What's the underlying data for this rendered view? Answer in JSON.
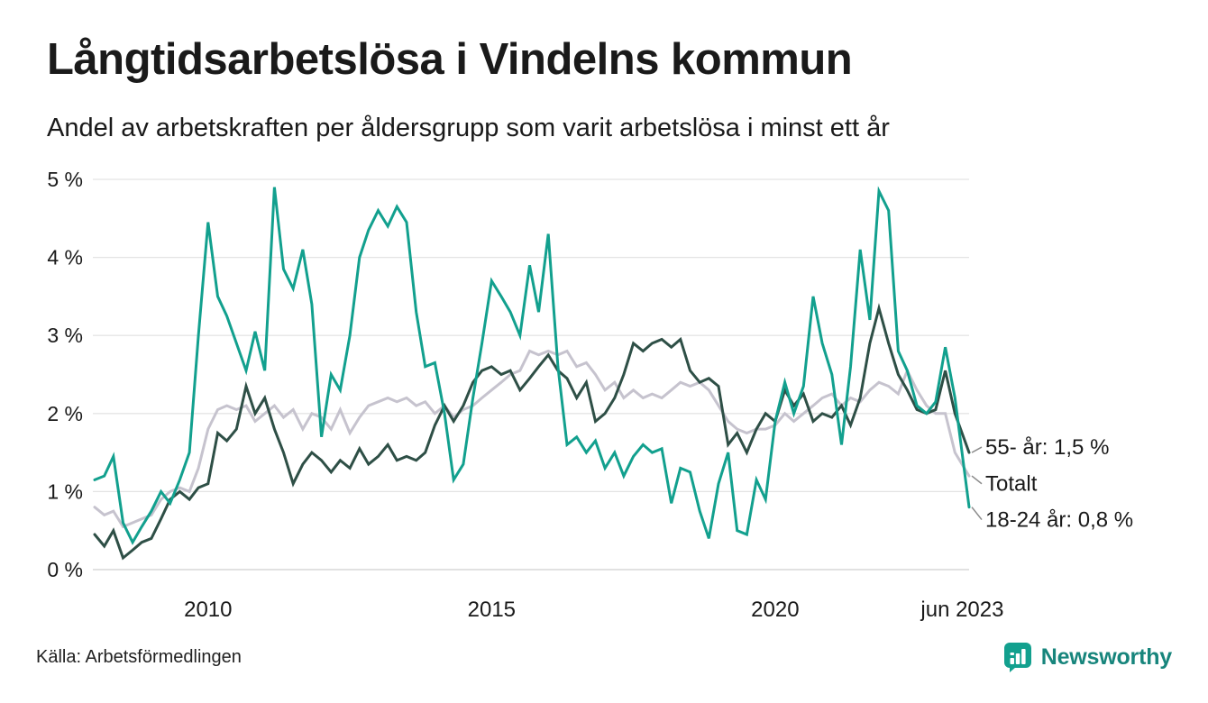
{
  "chart_data": {
    "type": "line",
    "title": "Långtidsarbetslösa i Vindelns kommun",
    "subtitle": "Andel av arbetskraften per åldersgrupp som varit arbetslösa i minst ett år",
    "source": "Källa: Arbetsförmedlingen",
    "x_unit": "decimal_year_monthly",
    "x_range": [
      2008,
      2023.42
    ],
    "ylim": [
      0,
      5
    ],
    "grid": "horizontal",
    "legend_position": "end-of-line-labels",
    "y_ticks": [
      {
        "value": 0,
        "label": "0 %"
      },
      {
        "value": 1,
        "label": "1 %"
      },
      {
        "value": 2,
        "label": "2 %"
      },
      {
        "value": 3,
        "label": "3 %"
      },
      {
        "value": 4,
        "label": "4 %"
      },
      {
        "value": 5,
        "label": "5 %"
      }
    ],
    "x_ticks": [
      {
        "value": 2010,
        "label": "2010"
      },
      {
        "value": 2015,
        "label": "2015"
      },
      {
        "value": 2020,
        "label": "2020"
      },
      {
        "value": 2023.3,
        "label": "jun 2023"
      }
    ],
    "x": [
      2008,
      2008.17,
      2008.33,
      2008.5,
      2008.67,
      2008.83,
      2009,
      2009.17,
      2009.33,
      2009.5,
      2009.67,
      2009.83,
      2010,
      2010.17,
      2010.33,
      2010.5,
      2010.67,
      2010.83,
      2011,
      2011.17,
      2011.33,
      2011.5,
      2011.67,
      2011.83,
      2012,
      2012.17,
      2012.33,
      2012.5,
      2012.67,
      2012.83,
      2013,
      2013.17,
      2013.33,
      2013.5,
      2013.67,
      2013.83,
      2014,
      2014.17,
      2014.33,
      2014.5,
      2014.67,
      2014.83,
      2015,
      2015.17,
      2015.33,
      2015.5,
      2015.67,
      2015.83,
      2016,
      2016.17,
      2016.33,
      2016.5,
      2016.67,
      2016.83,
      2017,
      2017.17,
      2017.33,
      2017.5,
      2017.67,
      2017.83,
      2018,
      2018.17,
      2018.33,
      2018.5,
      2018.67,
      2018.83,
      2019,
      2019.17,
      2019.33,
      2019.5,
      2019.67,
      2019.83,
      2020,
      2020.17,
      2020.33,
      2020.5,
      2020.67,
      2020.83,
      2021,
      2021.17,
      2021.33,
      2021.5,
      2021.67,
      2021.83,
      2022,
      2022.17,
      2022.33,
      2022.5,
      2022.67,
      2022.83,
      2023,
      2023.17,
      2023.42
    ],
    "series": [
      {
        "name": "Totalt",
        "color": "#c6c3ce",
        "end_value_label": "Totalt",
        "values": [
          0.8,
          0.7,
          0.75,
          0.55,
          0.6,
          0.65,
          0.7,
          0.9,
          1.0,
          1.05,
          1.0,
          1.3,
          1.8,
          2.05,
          2.1,
          2.05,
          2.1,
          1.9,
          2.0,
          2.1,
          1.95,
          2.05,
          1.8,
          2.0,
          1.95,
          1.8,
          2.05,
          1.75,
          1.95,
          2.1,
          2.15,
          2.2,
          2.15,
          2.2,
          2.1,
          2.15,
          2.0,
          2.1,
          1.95,
          2.05,
          2.1,
          2.2,
          2.3,
          2.4,
          2.5,
          2.55,
          2.8,
          2.75,
          2.8,
          2.75,
          2.8,
          2.6,
          2.65,
          2.5,
          2.3,
          2.4,
          2.2,
          2.3,
          2.2,
          2.25,
          2.2,
          2.3,
          2.4,
          2.35,
          2.4,
          2.3,
          2.1,
          1.9,
          1.8,
          1.75,
          1.8,
          1.8,
          1.85,
          2.0,
          1.9,
          2.0,
          2.1,
          2.2,
          2.25,
          2.1,
          2.2,
          2.15,
          2.3,
          2.4,
          2.35,
          2.25,
          2.55,
          2.3,
          2.1,
          2.0,
          2.0,
          1.5,
          1.2
        ]
      },
      {
        "name": "55- år",
        "color": "#2e4f46",
        "end_value_label": "55- år: 1,5 %",
        "values": [
          0.45,
          0.3,
          0.5,
          0.15,
          0.25,
          0.35,
          0.4,
          0.65,
          0.9,
          1.0,
          0.9,
          1.05,
          1.1,
          1.75,
          1.65,
          1.8,
          2.35,
          2.0,
          2.2,
          1.8,
          1.5,
          1.1,
          1.35,
          1.5,
          1.4,
          1.25,
          1.4,
          1.3,
          1.55,
          1.35,
          1.45,
          1.6,
          1.4,
          1.45,
          1.4,
          1.5,
          1.85,
          2.1,
          1.9,
          2.1,
          2.4,
          2.55,
          2.6,
          2.5,
          2.55,
          2.3,
          2.45,
          2.6,
          2.75,
          2.55,
          2.45,
          2.2,
          2.4,
          1.9,
          2.0,
          2.2,
          2.5,
          2.9,
          2.8,
          2.9,
          2.95,
          2.85,
          2.95,
          2.55,
          2.4,
          2.45,
          2.35,
          1.6,
          1.75,
          1.5,
          1.8,
          2.0,
          1.9,
          2.3,
          2.1,
          2.25,
          1.9,
          2.0,
          1.95,
          2.1,
          1.85,
          2.2,
          2.9,
          3.35,
          2.9,
          2.5,
          2.3,
          2.05,
          2.0,
          2.05,
          2.55,
          2.0,
          1.5
        ]
      },
      {
        "name": "18-24 år",
        "color": "#12a08e",
        "end_value_label": "18-24 år: 0,8 %",
        "values": [
          1.15,
          1.2,
          1.45,
          0.6,
          0.35,
          0.55,
          0.75,
          1.0,
          0.85,
          1.15,
          1.5,
          3.0,
          4.45,
          3.5,
          3.25,
          2.9,
          2.55,
          3.05,
          2.55,
          4.9,
          3.85,
          3.6,
          4.1,
          3.4,
          1.7,
          2.5,
          2.3,
          3.0,
          4.0,
          4.35,
          4.6,
          4.4,
          4.65,
          4.45,
          3.3,
          2.6,
          2.65,
          2.0,
          1.15,
          1.35,
          2.2,
          2.9,
          3.7,
          3.5,
          3.3,
          3.0,
          3.9,
          3.3,
          4.3,
          2.6,
          1.6,
          1.7,
          1.5,
          1.65,
          1.3,
          1.5,
          1.2,
          1.45,
          1.6,
          1.5,
          1.55,
          0.85,
          1.3,
          1.25,
          0.75,
          0.4,
          1.1,
          1.5,
          0.5,
          0.45,
          1.15,
          0.9,
          1.9,
          2.4,
          2.0,
          2.35,
          3.5,
          2.9,
          2.5,
          1.6,
          2.6,
          4.1,
          3.2,
          4.85,
          4.6,
          2.8,
          2.55,
          2.1,
          2.0,
          2.15,
          2.85,
          2.2,
          0.8
        ]
      }
    ],
    "annotations": [
      {
        "text": "55- år: 1,5 %",
        "series": "55- år",
        "anchor_value": 1.5,
        "label_value": 1.57
      },
      {
        "text": "Totalt",
        "series": "Totalt",
        "anchor_value": 1.2,
        "label_value": 1.1
      },
      {
        "text": "18-24 år: 0,8 %",
        "series": "18-24 år",
        "anchor_value": 0.8,
        "label_value": 0.64
      }
    ]
  },
  "brand": {
    "name": "Newsworthy",
    "color": "#17857c"
  },
  "colors": {
    "teal_line": "#12a08e",
    "dark_green_line": "#2e4f46",
    "light_gray_line": "#c6c3ce",
    "gridline": "#e4e4e4",
    "baseline": "#cfcfcf",
    "text": "#1a1a1a",
    "connector": "#8a8a8a"
  }
}
